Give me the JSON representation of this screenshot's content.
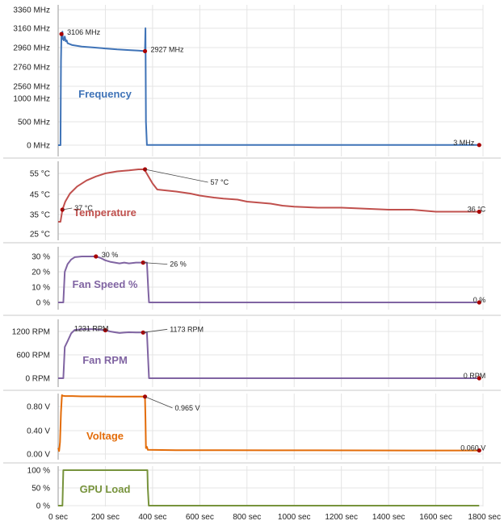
{
  "chart_data": [
    {
      "type": "line",
      "title": "Frequency",
      "unit": "MHz",
      "axis_break": {
        "lower": [
          0,
          1000
        ],
        "upper": [
          2560,
          3360
        ]
      },
      "y_ticks": [
        "3360 MHz",
        "3160 MHz",
        "2960 MHz",
        "2760 MHz",
        "2560 MHz",
        "1000 MHz",
        "500 MHz",
        "0 MHz"
      ],
      "color": "#3f73b7",
      "series": [
        {
          "x": [
            0,
            10,
            12,
            14,
            16,
            18,
            20,
            24,
            28,
            32,
            36,
            40,
            60,
            100,
            150,
            200,
            250,
            300,
            340,
            368,
            370,
            372,
            376,
            400,
            600,
            800,
            1000,
            1200,
            1400,
            1600,
            1784
          ],
          "y": [
            0,
            0,
            2820,
            3106,
            3050,
            3130,
            3060,
            3040,
            3080,
            3030,
            3040,
            3010,
            2990,
            2975,
            2965,
            2955,
            2945,
            2938,
            2932,
            2927,
            2500,
            500,
            3,
            3,
            3,
            3,
            3,
            3,
            3,
            3,
            3
          ]
        }
      ],
      "annotations": [
        {
          "x": 14,
          "y": 3106,
          "label": "3106 MHz"
        },
        {
          "x": 368,
          "y": 2927,
          "label": "2927 MHz"
        },
        {
          "x": 1784,
          "y": 3,
          "label": "3 MHz"
        }
      ]
    },
    {
      "type": "line",
      "title": "Temperature",
      "unit": "°C",
      "ylim": [
        25,
        60
      ],
      "y_ticks": [
        "55 °C",
        "45 °C",
        "35 °C",
        "25 °C"
      ],
      "color": "#c0504d",
      "series": [
        {
          "x": [
            0,
            10,
            18,
            30,
            50,
            80,
            120,
            160,
            200,
            250,
            300,
            340,
            365,
            385,
            400,
            420,
            500,
            560,
            600,
            660,
            700,
            760,
            800,
            900,
            950,
            1000,
            1100,
            1200,
            1300,
            1400,
            1450,
            1500,
            1550,
            1600,
            1650,
            1700,
            1784
          ],
          "y": [
            31,
            31,
            37,
            41,
            45,
            48.5,
            51.5,
            53.5,
            55,
            56,
            56.5,
            57,
            57,
            53,
            50,
            47,
            46,
            45,
            44,
            43,
            42.5,
            42,
            41,
            40,
            39,
            38.5,
            38,
            38,
            37.5,
            37,
            37,
            37,
            36.5,
            36,
            36,
            36,
            36
          ]
        }
      ],
      "annotations": [
        {
          "x": 18,
          "y": 37,
          "label": "37 °C"
        },
        {
          "x": 368,
          "y": 57,
          "label": "57 °C"
        },
        {
          "x": 1784,
          "y": 36,
          "label": "36 °C"
        }
      ]
    },
    {
      "type": "line",
      "title": "Fan Speed %",
      "unit": "%",
      "ylim": [
        0,
        33
      ],
      "y_ticks": [
        "30 %",
        "20 %",
        "10 %",
        "0 %"
      ],
      "color": "#8064a2",
      "series": [
        {
          "x": [
            0,
            22,
            28,
            40,
            55,
            70,
            100,
            140,
            160,
            180,
            200,
            220,
            240,
            260,
            280,
            300,
            330,
            350,
            372,
            376,
            382,
            385,
            1784
          ],
          "y": [
            0,
            0,
            20,
            25,
            28,
            29.5,
            30,
            30,
            30,
            29,
            27.5,
            26.5,
            26,
            25.5,
            26,
            25.5,
            26,
            26,
            26,
            26,
            8,
            0,
            0
          ]
        }
      ],
      "annotations": [
        {
          "x": 160,
          "y": 30,
          "label": "30 %"
        },
        {
          "x": 360,
          "y": 26,
          "label": "26 %"
        },
        {
          "x": 1784,
          "y": 0,
          "label": "0 %"
        }
      ]
    },
    {
      "type": "line",
      "title": "Fan RPM",
      "unit": "RPM",
      "ylim": [
        0,
        1350
      ],
      "y_ticks": [
        "1200 RPM",
        "600 RPM",
        "0 RPM"
      ],
      "color": "#8064a2",
      "series": [
        {
          "x": [
            0,
            22,
            28,
            40,
            55,
            70,
            100,
            140,
            170,
            200,
            220,
            240,
            260,
            280,
            300,
            330,
            360,
            372,
            376,
            382,
            385,
            1784
          ],
          "y": [
            0,
            0,
            800,
            950,
            1150,
            1240,
            1260,
            1260,
            1250,
            1231,
            1200,
            1180,
            1160,
            1170,
            1180,
            1175,
            1173,
            1173,
            1173,
            400,
            0,
            0
          ]
        }
      ],
      "annotations": [
        {
          "x": 200,
          "y": 1231,
          "label": "1231 RPM"
        },
        {
          "x": 360,
          "y": 1173,
          "label": "1173 RPM"
        },
        {
          "x": 1784,
          "y": 0,
          "label": "0 RPM"
        }
      ]
    },
    {
      "type": "line",
      "title": "Voltage",
      "unit": "V",
      "ylim": [
        0,
        1.05
      ],
      "y_ticks": [
        "0.80 V",
        "0.40 V",
        "0.00 V"
      ],
      "color": "#e36c09",
      "series": [
        {
          "x": [
            0,
            4,
            8,
            12,
            16,
            20,
            30,
            60,
            100,
            150,
            200,
            250,
            300,
            340,
            368,
            370,
            372,
            376,
            380,
            500,
            700,
            900,
            1100,
            1300,
            1500,
            1700,
            1784
          ],
          "y": [
            0.1,
            0.05,
            0.2,
            0.7,
            0.99,
            0.98,
            0.975,
            0.975,
            0.97,
            0.97,
            0.968,
            0.966,
            0.966,
            0.965,
            0.965,
            0.6,
            0.1,
            0.12,
            0.07,
            0.065,
            0.065,
            0.062,
            0.062,
            0.061,
            0.06,
            0.06,
            0.06
          ]
        }
      ],
      "annotations": [
        {
          "x": 368,
          "y": 0.965,
          "label": "0.965 V"
        },
        {
          "x": 1784,
          "y": 0.06,
          "label": "0.060 V"
        }
      ]
    },
    {
      "type": "area",
      "title": "GPU Load",
      "unit": "%",
      "ylim": [
        0,
        105
      ],
      "y_ticks": [
        "100 %",
        "50 %",
        "0 %"
      ],
      "color": "#77933c",
      "series": [
        {
          "x": [
            0,
            18,
            22,
            378,
            380,
            384,
            1784
          ],
          "y": [
            0,
            0,
            100,
            100,
            50,
            0,
            0
          ]
        }
      ]
    }
  ],
  "x_axis": {
    "xlim": [
      0,
      1800
    ],
    "ticks": [
      "0 sec",
      "200 sec",
      "400 sec",
      "600 sec",
      "800 sec",
      "1000 sec",
      "1200 sec",
      "1400 sec",
      "1600 sec",
      "1800 sec"
    ]
  }
}
